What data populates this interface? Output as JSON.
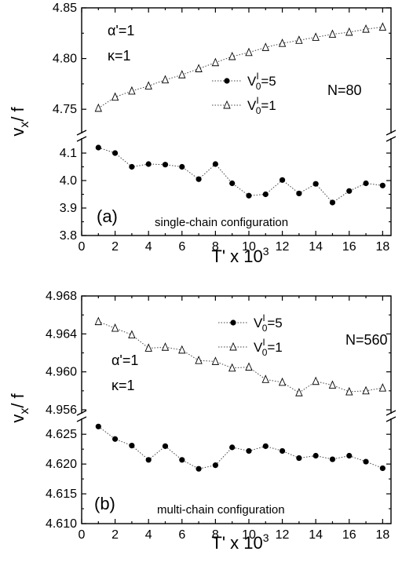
{
  "chart_data": [
    {
      "type": "scatter",
      "panel_label": "(a)",
      "annotation": "single-chain configuration",
      "params": [
        "α'=1",
        "κ=1"
      ],
      "n_label": "N=80",
      "xlabel": "T' x 10",
      "xlabel_exp": "3",
      "ylabel": "v",
      "ylabel_sub": "x",
      "ylabel_tail": "/ f",
      "xlim": [
        0,
        18.5
      ],
      "x_ticks": [
        0,
        2,
        4,
        6,
        8,
        10,
        12,
        14,
        16,
        18
      ],
      "y_break": true,
      "upper_ylim": [
        4.73,
        4.85
      ],
      "upper_ticks": [
        "4.75",
        "4.80",
        "4.85"
      ],
      "lower_ylim": [
        3.8,
        4.14
      ],
      "lower_ticks": [
        "3.8",
        "3.9",
        "4.0",
        "4.1"
      ],
      "legend": [
        {
          "label": "V",
          "sup": "I",
          "sub": "0",
          "tail": "=5",
          "marker": "filled-circle"
        },
        {
          "label": "V",
          "sup": "I",
          "sub": "0",
          "tail": "=1",
          "marker": "open-triangle"
        }
      ],
      "series": [
        {
          "name": "V0'=5",
          "marker": "filled-circle",
          "axis": "lower",
          "x": [
            1,
            2,
            3,
            4,
            5,
            6,
            7,
            8,
            9,
            10,
            11,
            12,
            13,
            14,
            15,
            16,
            17,
            18
          ],
          "y": [
            4.12,
            4.1,
            4.05,
            4.06,
            4.058,
            4.05,
            4.005,
            4.06,
            3.99,
            3.945,
            3.95,
            4.002,
            3.953,
            3.988,
            3.92,
            3.962,
            3.99,
            3.982
          ]
        },
        {
          "name": "V0'=1",
          "marker": "open-triangle",
          "axis": "upper",
          "x": [
            1,
            2,
            3,
            4,
            5,
            6,
            7,
            8,
            9,
            10,
            11,
            12,
            13,
            14,
            15,
            16,
            17,
            18
          ],
          "y": [
            4.751,
            4.762,
            4.768,
            4.773,
            4.779,
            4.784,
            4.79,
            4.796,
            4.802,
            4.806,
            4.811,
            4.815,
            4.818,
            4.821,
            4.824,
            4.826,
            4.829,
            4.831
          ]
        }
      ]
    },
    {
      "type": "scatter",
      "panel_label": "(b)",
      "annotation": "multi-chain configuration",
      "params": [
        "α'=1",
        "κ=1"
      ],
      "n_label": "N=560",
      "xlabel": "T' x 10",
      "xlabel_exp": "3",
      "ylabel": "v",
      "ylabel_sub": "x",
      "ylabel_tail": "/ f",
      "xlim": [
        0,
        18.5
      ],
      "x_ticks": [
        0,
        2,
        4,
        6,
        8,
        10,
        12,
        14,
        16,
        18
      ],
      "y_break": true,
      "upper_ylim": [
        4.956,
        4.968
      ],
      "upper_ticks": [
        "4.956",
        "4.960",
        "4.964",
        "4.968"
      ],
      "lower_ylim": [
        4.61,
        4.627
      ],
      "lower_ticks": [
        "4.610",
        "4.615",
        "4.620",
        "4.625"
      ],
      "legend": [
        {
          "label": "V",
          "sup": "I",
          "sub": "0",
          "tail": "=5",
          "marker": "filled-circle"
        },
        {
          "label": "V",
          "sup": "I",
          "sub": "0",
          "tail": "=1",
          "marker": "open-triangle"
        }
      ],
      "series": [
        {
          "name": "V0'=5",
          "marker": "filled-circle",
          "axis": "lower",
          "x": [
            1,
            2,
            3,
            4,
            5,
            6,
            7,
            8,
            9,
            10,
            11,
            12,
            13,
            14,
            15,
            16,
            17,
            18
          ],
          "y": [
            4.6263,
            4.6242,
            4.6231,
            4.6207,
            4.623,
            4.6207,
            4.6192,
            4.6198,
            4.6228,
            4.6222,
            4.623,
            4.6222,
            4.621,
            4.6214,
            4.6208,
            4.6214,
            4.6204,
            4.6193
          ]
        },
        {
          "name": "V0'=1",
          "marker": "open-triangle",
          "axis": "upper",
          "x": [
            1,
            2,
            3,
            4,
            5,
            6,
            7,
            8,
            9,
            10,
            11,
            12,
            13,
            14,
            15,
            16,
            17,
            18
          ],
          "y": [
            4.9653,
            4.9646,
            4.9639,
            4.9625,
            4.9626,
            4.9623,
            4.9612,
            4.9611,
            4.9604,
            4.9605,
            4.9592,
            4.9589,
            4.9578,
            4.959,
            4.9586,
            4.9579,
            4.958,
            4.9583
          ]
        }
      ]
    }
  ]
}
